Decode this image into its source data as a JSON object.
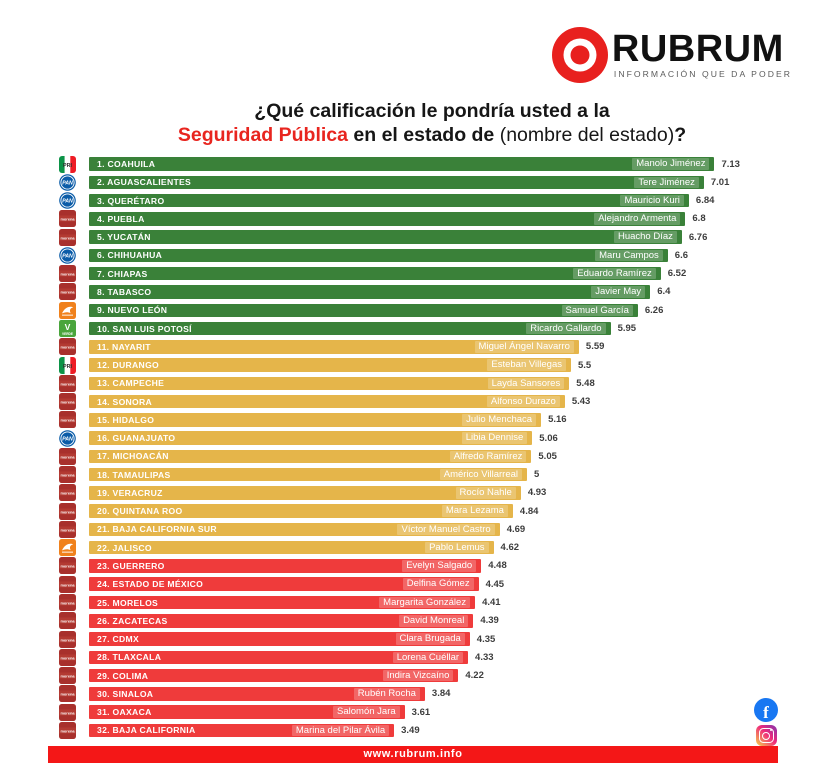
{
  "brand": {
    "name": "RUBRUM",
    "tagline": "INFORMACIÓN QUE DA PODER"
  },
  "title": {
    "line1": "¿Qué calificación le pondría usted a la",
    "highlight": "Seguridad Pública",
    "middle": " en el estado de ",
    "muted": "(nombre del estado)",
    "qmark": "?"
  },
  "footer": {
    "url": "www.rubrum.info"
  },
  "colors": {
    "green": "#3a8139",
    "yellow": "#e5b54a",
    "red": "#ef3b3b",
    "footer_red": "#f41717",
    "title_red": "#e8251f",
    "facebook_blue": "#1877f2"
  },
  "chart_data": {
    "type": "bar",
    "orientation": "horizontal",
    "title": "¿Qué calificación le pondría usted a la Seguridad Pública en el estado de (nombre del estado)?",
    "value_range": [
      0,
      7.5
    ],
    "tier_colors": {
      "green": "#3a8139",
      "yellow": "#e5b54a",
      "red": "#ef3b3b"
    },
    "rows": [
      {
        "rank": 1,
        "state": "COAHUILA",
        "governor": "Manolo Jiménez",
        "value": 7.13,
        "label": "7.13",
        "tier": "green",
        "party": "PRI"
      },
      {
        "rank": 2,
        "state": "AGUASCALIENTES",
        "governor": "Tere Jiménez",
        "value": 7.01,
        "label": "7.01",
        "tier": "green",
        "party": "PAN"
      },
      {
        "rank": 3,
        "state": "QUERÉTARO",
        "governor": "Mauricio Kuri",
        "value": 6.84,
        "label": "6.84",
        "tier": "green",
        "party": "PAN"
      },
      {
        "rank": 4,
        "state": "PUEBLA",
        "governor": "Alejandro Armenta",
        "value": 6.8,
        "label": "6.8",
        "tier": "green",
        "party": "MORENA"
      },
      {
        "rank": 5,
        "state": "YUCATÁN",
        "governor": "Huacho Díaz",
        "value": 6.76,
        "label": "6.76",
        "tier": "green",
        "party": "MORENA"
      },
      {
        "rank": 6,
        "state": "CHIHUAHUA",
        "governor": "Maru Campos",
        "value": 6.6,
        "label": "6.6",
        "tier": "green",
        "party": "PAN"
      },
      {
        "rank": 7,
        "state": "CHIAPAS",
        "governor": "Eduardo Ramírez",
        "value": 6.52,
        "label": "6.52",
        "tier": "green",
        "party": "MORENA"
      },
      {
        "rank": 8,
        "state": "TABASCO",
        "governor": "Javier May",
        "value": 6.4,
        "label": "6.4",
        "tier": "green",
        "party": "MORENA"
      },
      {
        "rank": 9,
        "state": "NUEVO LEÓN",
        "governor": "Samuel García",
        "value": 6.26,
        "label": "6.26",
        "tier": "green",
        "party": "MC"
      },
      {
        "rank": 10,
        "state": "SAN LUIS POTOSÍ",
        "governor": "Ricardo Gallardo",
        "value": 5.95,
        "label": "5.95",
        "tier": "green",
        "party": "VERDE"
      },
      {
        "rank": 11,
        "state": "NAYARIT",
        "governor": "Miguel Ángel Navarro",
        "value": 5.59,
        "label": "5.59",
        "tier": "yellow",
        "party": "MORENA"
      },
      {
        "rank": 12,
        "state": "DURANGO",
        "governor": "Esteban Villegas",
        "value": 5.5,
        "label": "5.5",
        "tier": "yellow",
        "party": "PRI"
      },
      {
        "rank": 13,
        "state": "CAMPECHE",
        "governor": "Layda Sansores",
        "value": 5.48,
        "label": "5.48",
        "tier": "yellow",
        "party": "MORENA"
      },
      {
        "rank": 14,
        "state": "SONORA",
        "governor": "Alfonso Durazo",
        "value": 5.43,
        "label": "5.43",
        "tier": "yellow",
        "party": "MORENA"
      },
      {
        "rank": 15,
        "state": "HIDALGO",
        "governor": "Julio Menchaca",
        "value": 5.16,
        "label": "5.16",
        "tier": "yellow",
        "party": "MORENA"
      },
      {
        "rank": 16,
        "state": "GUANAJUATO",
        "governor": "Libia Dennise",
        "value": 5.06,
        "label": "5.06",
        "tier": "yellow",
        "party": "PAN"
      },
      {
        "rank": 17,
        "state": "MICHOACÁN",
        "governor": "Alfredo Ramírez",
        "value": 5.05,
        "label": "5.05",
        "tier": "yellow",
        "party": "MORENA"
      },
      {
        "rank": 18,
        "state": "TAMAULIPAS",
        "governor": "Américo Villarreal",
        "value": 5,
        "label": "5",
        "tier": "yellow",
        "party": "MORENA"
      },
      {
        "rank": 19,
        "state": "VERACRUZ",
        "governor": "Rocío Nahle",
        "value": 4.93,
        "label": "4.93",
        "tier": "yellow",
        "party": "MORENA"
      },
      {
        "rank": 20,
        "state": "QUINTANA ROO",
        "governor": "Mara Lezama",
        "value": 4.84,
        "label": "4.84",
        "tier": "yellow",
        "party": "MORENA"
      },
      {
        "rank": 21,
        "state": "BAJA CALIFORNIA SUR",
        "governor": "Víctor Manuel Castro",
        "value": 4.69,
        "label": "4.69",
        "tier": "yellow",
        "party": "MORENA"
      },
      {
        "rank": 22,
        "state": "JALISCO",
        "governor": "Pablo Lemus",
        "value": 4.62,
        "label": "4.62",
        "tier": "yellow",
        "party": "MC"
      },
      {
        "rank": 23,
        "state": "GUERRERO",
        "governor": "Evelyn Salgado",
        "value": 4.48,
        "label": "4.48",
        "tier": "red",
        "party": "MORENA"
      },
      {
        "rank": 24,
        "state": "ESTADO DE MÉXICO",
        "governor": "Delfina Gómez",
        "value": 4.45,
        "label": "4.45",
        "tier": "red",
        "party": "MORENA"
      },
      {
        "rank": 25,
        "state": "MORELOS",
        "governor": "Margarita González",
        "value": 4.41,
        "label": "4.41",
        "tier": "red",
        "party": "MORENA"
      },
      {
        "rank": 26,
        "state": "ZACATECAS",
        "governor": "David Monreal",
        "value": 4.39,
        "label": "4.39",
        "tier": "red",
        "party": "MORENA"
      },
      {
        "rank": 27,
        "state": "CDMX",
        "governor": "Clara Brugada",
        "value": 4.35,
        "label": "4.35",
        "tier": "red",
        "party": "MORENA"
      },
      {
        "rank": 28,
        "state": "TLAXCALA",
        "governor": "Lorena Cuéllar",
        "value": 4.33,
        "label": "4.33",
        "tier": "red",
        "party": "MORENA"
      },
      {
        "rank": 29,
        "state": "COLIMA",
        "governor": "Indira Vizcaíno",
        "value": 4.22,
        "label": "4.22",
        "tier": "red",
        "party": "MORENA"
      },
      {
        "rank": 30,
        "state": "SINALOA",
        "governor": "Rubén Rocha",
        "value": 3.84,
        "label": "3.84",
        "tier": "red",
        "party": "MORENA"
      },
      {
        "rank": 31,
        "state": "OAXACA",
        "governor": "Salomón Jara",
        "value": 3.61,
        "label": "3.61",
        "tier": "red",
        "party": "MORENA"
      },
      {
        "rank": 32,
        "state": "BAJA CALIFORNIA",
        "governor": "Marina del Pilar Ávila",
        "value": 3.49,
        "label": "3.49",
        "tier": "red",
        "party": "MORENA"
      }
    ]
  }
}
